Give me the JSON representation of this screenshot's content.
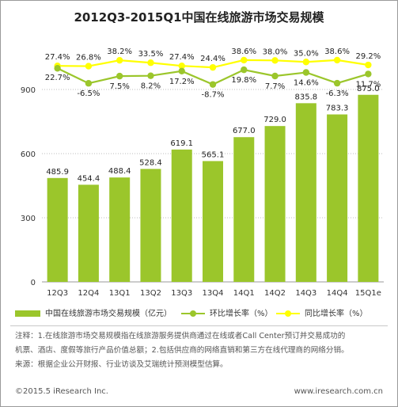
{
  "title": "2012Q3-2015Q1中国在线旅游市场交易规模",
  "chart_data": {
    "type": "bar+line",
    "categories": [
      "12Q3",
      "12Q4",
      "13Q1",
      "13Q2",
      "13Q3",
      "13Q4",
      "14Q1",
      "14Q2",
      "14Q3",
      "14Q4",
      "15Q1e"
    ],
    "bars": {
      "name": "中国在线旅游市场交易规模（亿元）",
      "values": [
        485.9,
        454.4,
        488.4,
        528.4,
        619.1,
        565.1,
        677.0,
        729.0,
        835.8,
        783.3,
        875.0
      ],
      "labels": [
        "485.9",
        "454.4",
        "488.4",
        "528.4",
        "619.1",
        "565.1",
        "677.0",
        "729.0",
        "835.8",
        "783.3",
        "875.0"
      ],
      "color": "#9bc62b"
    },
    "qoq": {
      "name": "环比增长率（%）",
      "values": [
        22.7,
        -6.5,
        7.5,
        8.2,
        17.2,
        -8.7,
        19.8,
        7.7,
        14.6,
        -6.3,
        11.7
      ],
      "labels": [
        "22.7%",
        "-6.5%",
        "7.5%",
        "8.2%",
        "17.2%",
        "-8.7%",
        "19.8%",
        "7.7%",
        "14.6%",
        "-6.3%",
        "11.7%"
      ],
      "color": "#9bc62b"
    },
    "yoy": {
      "name": "同比增长率（%）",
      "values": [
        27.4,
        26.8,
        38.2,
        33.5,
        27.4,
        24.4,
        38.6,
        38.0,
        35.0,
        38.6,
        29.2
      ],
      "labels": [
        "27.4%",
        "26.8%",
        "38.2%",
        "33.5%",
        "27.4%",
        "24.4%",
        "38.6%",
        "38.0%",
        "35.0%",
        "38.6%",
        "29.2%"
      ],
      "color": "#ffff00"
    },
    "y_ticks": [
      "0",
      "300",
      "600",
      "900"
    ],
    "ylim": [
      0,
      1080
    ]
  },
  "notes": [
    "注释：1.在线旅游市场交易规模指在线旅游服务提供商通过在线或者Call Center预订并交易成功的",
    "机票、酒店、度假等旅行产品价值总额；2.包括供应商的网络直销和第三方在线代理商的网络分销。",
    "来源：根据企业公开财报、行业访谈及艾瑞统计预测模型估算。"
  ],
  "footer": {
    "copyright": "©2015.5 iResearch Inc.",
    "website": "www.iresearch.com.cn"
  }
}
